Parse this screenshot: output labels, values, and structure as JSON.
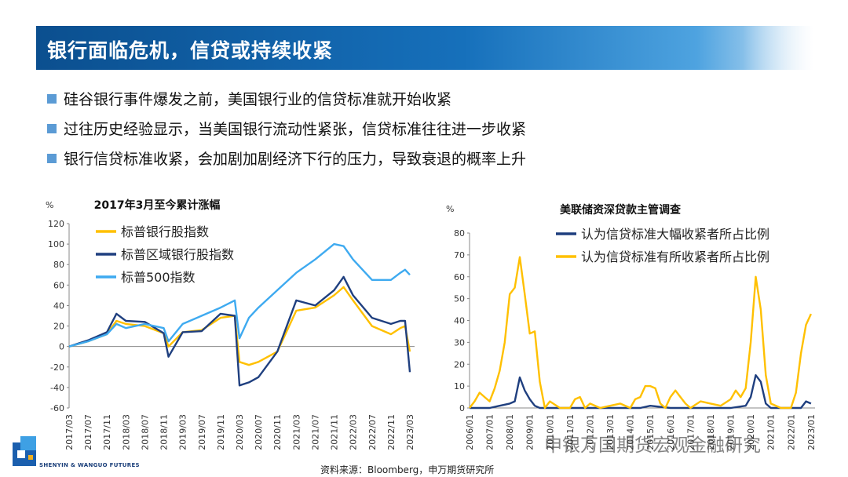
{
  "title": "银行面临危机，信贷或持续收紧",
  "bullets": [
    "硅谷银行事件爆发之前，美国银行业的信贷标准就开始收紧",
    "过往历史经验显示，当美国银行流动性紧张，信贷标准往往进一步收紧",
    "银行信贷标准收紧，会加剧加剧经济下行的压力，导致衰退的概率上升"
  ],
  "source": "资料来源：Bloomberg，申万期货研究所",
  "logo_text": "SHENYIN & WANGUO FUTURES",
  "watermark": "申银万国期货宏观金融研究",
  "colors": {
    "title_bar": "#1670bb",
    "bullet_square": "#5b9bd5",
    "gold": "#ffc000",
    "navy": "#1f3f7f",
    "sky": "#3eaaf0"
  },
  "chart_data": [
    {
      "type": "line",
      "title": "2017年3月至今累计涨幅",
      "unit": "%",
      "ylim": [
        -60,
        120
      ],
      "yticks": [
        -60,
        -40,
        -20,
        0,
        20,
        40,
        60,
        80,
        100,
        120
      ],
      "xticks": [
        "2017/03",
        "2017/07",
        "2017/11",
        "2018/03",
        "2018/07",
        "2018/11",
        "2019/03",
        "2019/07",
        "2019/11",
        "2020/03",
        "2020/07",
        "2020/11",
        "2021/03",
        "2021/07",
        "2021/11",
        "2022/03",
        "2022/07",
        "2022/11",
        "2023/03"
      ],
      "legend_position": "top-left",
      "series": [
        {
          "name": "标普银行股指数",
          "color": "#ffc000",
          "x": [
            "2017/03",
            "2017/07",
            "2017/11",
            "2018/01",
            "2018/03",
            "2018/07",
            "2018/11",
            "2018/12",
            "2019/03",
            "2019/07",
            "2019/11",
            "2020/02",
            "2020/03",
            "2020/05",
            "2020/07",
            "2020/11",
            "2021/03",
            "2021/07",
            "2021/11",
            "2022/01",
            "2022/03",
            "2022/07",
            "2022/11",
            "2023/01",
            "2023/02",
            "2023/03"
          ],
          "values": [
            0,
            5,
            12,
            25,
            22,
            20,
            13,
            0,
            14,
            16,
            28,
            30,
            -15,
            -18,
            -15,
            -5,
            35,
            38,
            50,
            58,
            45,
            20,
            12,
            18,
            20,
            -5
          ]
        },
        {
          "name": "标普区域银行股指数",
          "color": "#1f3f7f",
          "x": [
            "2017/03",
            "2017/07",
            "2017/11",
            "2018/01",
            "2018/03",
            "2018/07",
            "2018/11",
            "2018/12",
            "2019/03",
            "2019/07",
            "2019/11",
            "2020/02",
            "2020/03",
            "2020/05",
            "2020/07",
            "2020/11",
            "2021/03",
            "2021/07",
            "2021/11",
            "2022/01",
            "2022/03",
            "2022/07",
            "2022/11",
            "2023/01",
            "2023/02",
            "2023/03"
          ],
          "values": [
            0,
            6,
            14,
            32,
            25,
            24,
            13,
            -10,
            14,
            15,
            32,
            30,
            -38,
            -35,
            -30,
            -5,
            45,
            40,
            55,
            68,
            50,
            28,
            22,
            25,
            25,
            -25
          ]
        },
        {
          "name": "标普500指数",
          "color": "#3eaaf0",
          "x": [
            "2017/03",
            "2017/07",
            "2017/11",
            "2018/01",
            "2018/03",
            "2018/07",
            "2018/11",
            "2018/12",
            "2019/03",
            "2019/07",
            "2019/11",
            "2020/02",
            "2020/03",
            "2020/05",
            "2020/07",
            "2020/11",
            "2021/03",
            "2021/07",
            "2021/11",
            "2022/01",
            "2022/03",
            "2022/07",
            "2022/11",
            "2023/01",
            "2023/02",
            "2023/03"
          ],
          "values": [
            0,
            5,
            12,
            22,
            18,
            22,
            18,
            5,
            22,
            30,
            38,
            45,
            8,
            28,
            38,
            55,
            72,
            85,
            100,
            98,
            85,
            65,
            65,
            72,
            75,
            70
          ]
        }
      ]
    },
    {
      "type": "line",
      "title": "美联储资深贷款主管调查",
      "unit": "%",
      "ylim": [
        0,
        80
      ],
      "yticks": [
        0,
        10,
        20,
        30,
        40,
        50,
        60,
        70,
        80
      ],
      "xticks": [
        "2006/01",
        "2007/01",
        "2008/01",
        "2009/01",
        "2010/01",
        "2011/01",
        "2012/01",
        "2013/01",
        "2014/01",
        "2015/01",
        "2016/01",
        "2017/01",
        "2018/01",
        "2019/01",
        "2020/01",
        "2021/01",
        "2022/01",
        "2023/01"
      ],
      "legend_position": "top-right",
      "series": [
        {
          "name": "认为信贷标准大幅收紧者所占比例",
          "color": "#1f3f7f",
          "x": [
            2006.0,
            2007.0,
            2007.5,
            2008.0,
            2008.25,
            2008.5,
            2008.75,
            2009.0,
            2009.25,
            2009.5,
            2010.0,
            2012.0,
            2014.5,
            2015.0,
            2016.0,
            2016.5,
            2017.0,
            2019.0,
            2019.75,
            2020.0,
            2020.25,
            2020.5,
            2020.75,
            2021.0,
            2022.0,
            2022.5,
            2022.75,
            2023.0
          ],
          "values": [
            0,
            0,
            1,
            2,
            3,
            14,
            8,
            4,
            1,
            0,
            0,
            0,
            0,
            1,
            0,
            0,
            0,
            0,
            1,
            5,
            15,
            12,
            2,
            0,
            0,
            0,
            3,
            2
          ]
        },
        {
          "name": "认为信贷标准有所收紧者所占比例",
          "color": "#ffc000",
          "x": [
            2006.0,
            2006.25,
            2006.5,
            2006.75,
            2007.0,
            2007.25,
            2007.5,
            2007.75,
            2008.0,
            2008.25,
            2008.5,
            2008.75,
            2009.0,
            2009.25,
            2009.5,
            2009.75,
            2010.0,
            2010.5,
            2011.0,
            2011.25,
            2011.5,
            2011.75,
            2012.0,
            2012.5,
            2013.0,
            2013.5,
            2014.0,
            2014.25,
            2014.5,
            2014.75,
            2015.0,
            2015.25,
            2015.5,
            2015.75,
            2016.0,
            2016.25,
            2016.5,
            2016.75,
            2017.0,
            2017.5,
            2018.0,
            2018.5,
            2019.0,
            2019.25,
            2019.5,
            2019.75,
            2020.0,
            2020.25,
            2020.5,
            2020.75,
            2021.0,
            2021.5,
            2022.0,
            2022.25,
            2022.5,
            2022.75,
            2023.0
          ],
          "values": [
            0,
            3,
            7,
            5,
            3,
            9,
            17,
            30,
            52,
            55,
            69,
            52,
            34,
            35,
            12,
            0,
            3,
            0,
            0,
            4,
            5,
            0,
            2,
            0,
            1,
            2,
            0,
            4,
            5,
            10,
            10,
            9,
            2,
            0,
            5,
            8,
            5,
            2,
            0,
            3,
            2,
            1,
            4,
            8,
            5,
            9,
            30,
            60,
            45,
            15,
            2,
            0,
            0,
            7,
            25,
            38,
            43
          ]
        }
      ]
    }
  ]
}
